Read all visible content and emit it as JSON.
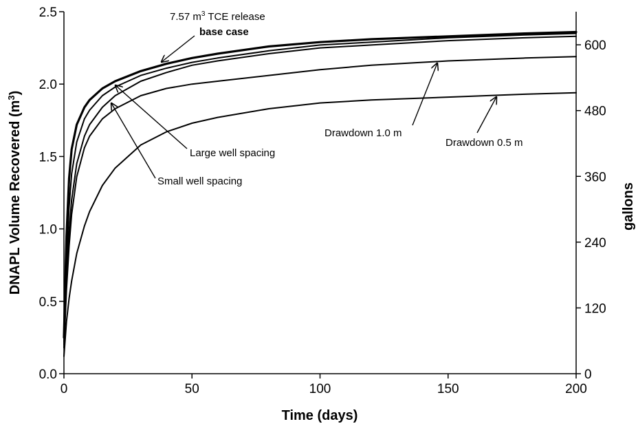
{
  "chart_data": {
    "type": "line",
    "xlabel": "Time (days)",
    "ylabel_left_main": "DNAPL Volume Recovered (m",
    "ylabel_left_sup": "3",
    "ylabel_left_close": ")",
    "ylabel_right": "gallons",
    "xlim": [
      0,
      200
    ],
    "ylim": [
      0,
      2.5
    ],
    "y2lim": [
      0,
      660.4
    ],
    "xticks": [
      0,
      50,
      100,
      150,
      200
    ],
    "xtick_labels": [
      "0",
      "50",
      "100",
      "150",
      "200"
    ],
    "yticks": [
      0,
      0.5,
      1.0,
      1.5,
      2.0,
      2.5
    ],
    "ytick_labels": [
      "0.0",
      "0.5",
      "1.0",
      "1.5",
      "2.0",
      "2.5"
    ],
    "y2ticks": [
      0,
      120,
      240,
      360,
      480,
      600
    ],
    "y2tick_labels": [
      "0",
      "120",
      "240",
      "360",
      "480",
      "600"
    ],
    "grid": false,
    "series": [
      {
        "name": "base case",
        "x": [
          0,
          1,
          2,
          3,
          5,
          8,
          10,
          15,
          20,
          30,
          40,
          50,
          60,
          80,
          100,
          120,
          150,
          180,
          200
        ],
        "y": [
          0.25,
          0.95,
          1.35,
          1.55,
          1.72,
          1.84,
          1.89,
          1.97,
          2.02,
          2.09,
          2.14,
          2.18,
          2.21,
          2.26,
          2.29,
          2.31,
          2.33,
          2.35,
          2.36
        ]
      },
      {
        "name": "Large well spacing",
        "x": [
          0,
          1,
          2,
          3,
          5,
          8,
          10,
          15,
          20,
          30,
          40,
          50,
          60,
          80,
          100,
          120,
          150,
          180,
          200
        ],
        "y": [
          0.22,
          0.78,
          1.15,
          1.38,
          1.6,
          1.76,
          1.82,
          1.92,
          1.98,
          2.06,
          2.11,
          2.15,
          2.18,
          2.23,
          2.27,
          2.29,
          2.32,
          2.34,
          2.35
        ]
      },
      {
        "name": "Small well spacing",
        "x": [
          0,
          1,
          2,
          3,
          5,
          8,
          10,
          15,
          20,
          30,
          40,
          50,
          60,
          80,
          100,
          120,
          150,
          180,
          200
        ],
        "y": [
          0.2,
          0.65,
          0.98,
          1.2,
          1.45,
          1.64,
          1.72,
          1.84,
          1.92,
          2.02,
          2.08,
          2.13,
          2.16,
          2.21,
          2.25,
          2.27,
          2.3,
          2.32,
          2.33
        ]
      },
      {
        "name": "Drawdown 1.0 m",
        "x": [
          0,
          1,
          2,
          3,
          5,
          8,
          10,
          15,
          20,
          30,
          40,
          50,
          60,
          80,
          100,
          120,
          150,
          180,
          200
        ],
        "y": [
          0.18,
          0.58,
          0.88,
          1.1,
          1.36,
          1.56,
          1.64,
          1.76,
          1.83,
          1.92,
          1.97,
          2.0,
          2.02,
          2.06,
          2.1,
          2.13,
          2.16,
          2.18,
          2.19
        ]
      },
      {
        "name": "Drawdown 0.5 m",
        "x": [
          0,
          1,
          2,
          3,
          5,
          8,
          10,
          15,
          20,
          30,
          40,
          50,
          60,
          80,
          100,
          120,
          150,
          180,
          200
        ],
        "y": [
          0.12,
          0.36,
          0.52,
          0.64,
          0.83,
          1.02,
          1.12,
          1.3,
          1.42,
          1.58,
          1.67,
          1.73,
          1.77,
          1.83,
          1.87,
          1.89,
          1.91,
          1.93,
          1.94
        ]
      }
    ],
    "annotations": [
      {
        "text": "7.57 m",
        "sup": "3",
        "text_after": " TCE release"
      },
      {
        "text": "base case"
      },
      {
        "text": "Large well spacing"
      },
      {
        "text": "Small well spacing"
      },
      {
        "text": "Drawdown 1.0 m"
      },
      {
        "text": "Drawdown 0.5 m"
      }
    ]
  }
}
